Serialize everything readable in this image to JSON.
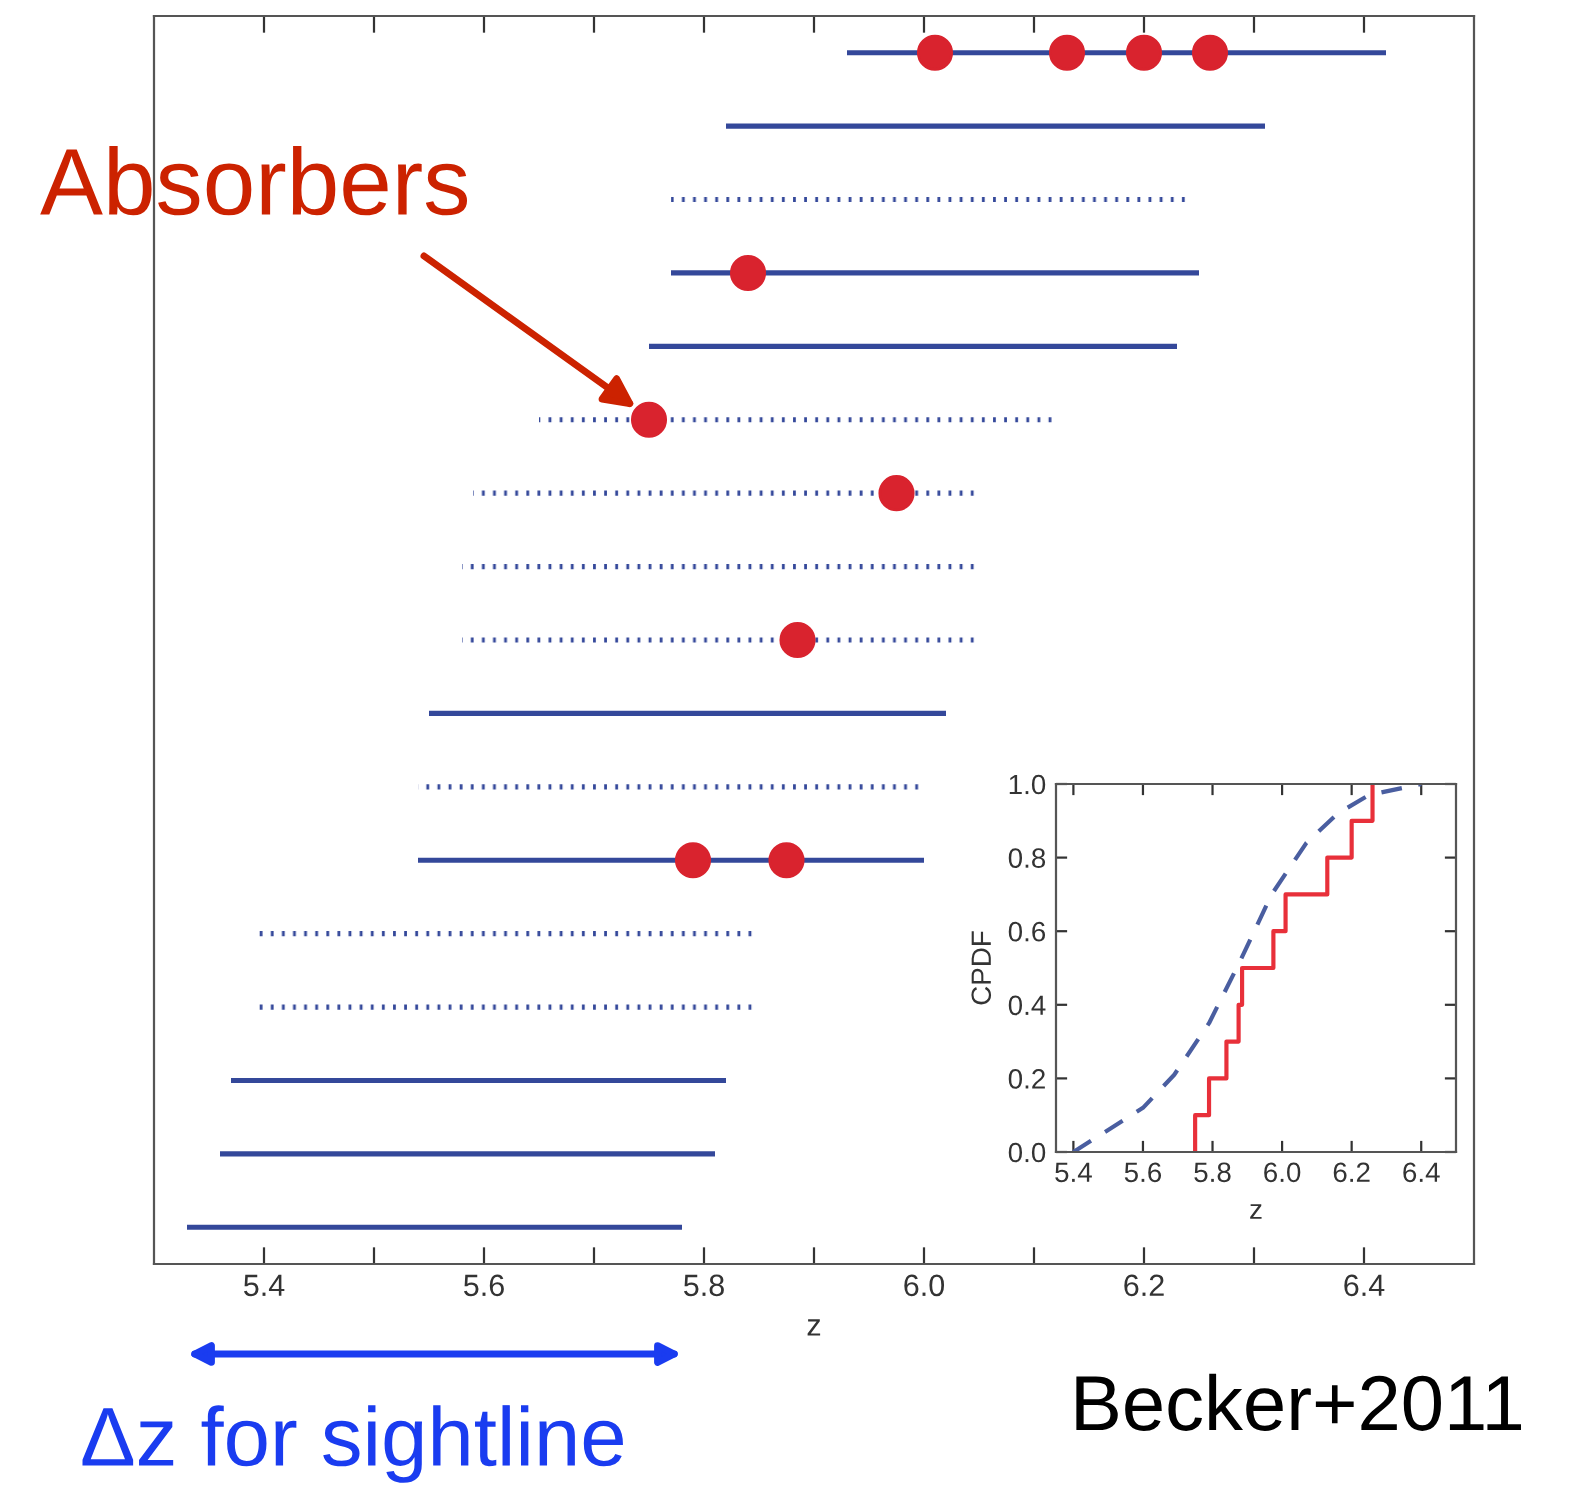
{
  "chart_data": [
    {
      "type": "bar",
      "orientation": "horizontal",
      "xlabel": "z",
      "tick_labels": "x",
      "grid": false,
      "legend": false,
      "categories": [
        null,
        null,
        null,
        null,
        null,
        null,
        null,
        null,
        null,
        null,
        null,
        null,
        null,
        null,
        null,
        null,
        null
      ],
      "xlim": [
        5.3,
        6.5
      ],
      "xticks": [
        5.4,
        {
          "value": 5.5,
          "label": null
        },
        5.6,
        {
          "value": 5.7,
          "label": null
        },
        5.8,
        {
          "value": 5.9,
          "label": null
        },
        {
          "value": 6,
          "label": "6.0"
        },
        {
          "value": 6.1,
          "label": null
        },
        6.2,
        {
          "value": 6.3,
          "label": null
        },
        6.4
      ],
      "series": [
        {
          "type": "bar",
          "line_style": "solid",
          "color": "#34489a",
          "base": [
            5.93,
            5.82,
            null,
            5.77,
            5.75,
            null,
            null,
            null,
            null,
            5.55,
            null,
            5.54,
            null,
            null,
            5.37,
            5.36,
            5.33
          ],
          "values": [
            0.49,
            0.49,
            null,
            0.48,
            0.48,
            null,
            null,
            null,
            null,
            0.47,
            null,
            0.46,
            null,
            null,
            0.45,
            0.45,
            0.45
          ]
        },
        {
          "type": "bar",
          "line_style": "dotted",
          "color": "#34489a",
          "base": [
            null,
            null,
            5.77,
            null,
            null,
            5.65,
            5.59,
            5.58,
            5.58,
            null,
            5.54,
            null,
            5.39,
            5.39,
            null,
            null,
            null
          ],
          "values": [
            null,
            null,
            0.47,
            null,
            null,
            0.47,
            0.46,
            0.47,
            0.47,
            null,
            0.46,
            null,
            0.46,
            0.46,
            null,
            null,
            null
          ]
        },
        {
          "type": "scatter",
          "marker": "circle",
          "color": "#d9232e",
          "values": [
            6.01,
            null,
            null,
            5.84,
            null,
            5.75,
            5.975,
            null,
            5.885,
            null,
            null,
            5.79,
            null,
            null,
            null,
            null,
            null
          ]
        },
        {
          "type": "scatter",
          "marker": "circle",
          "color": "#d9232e",
          "values": [
            6.13,
            null,
            null,
            null,
            null,
            null,
            null,
            null,
            null,
            null,
            null,
            5.875,
            null,
            null,
            null,
            null,
            null
          ]
        },
        {
          "type": "scatter",
          "marker": "circle",
          "color": "#d9232e",
          "values": [
            6.2,
            null,
            null,
            null,
            null,
            null,
            null,
            null,
            null,
            null,
            null,
            null,
            null,
            null,
            null,
            null,
            null
          ]
        },
        {
          "type": "scatter",
          "marker": "circle",
          "color": "#d9232e",
          "values": [
            6.26,
            null,
            null,
            null,
            null,
            null,
            null,
            null,
            null,
            null,
            null,
            null,
            null,
            null,
            null,
            null,
            null
          ]
        }
      ],
      "annotations": [
        "Absorbers",
        "Δz for sightline",
        "Becker+2011"
      ]
    },
    {
      "type": "line",
      "xlabel": "z",
      "ylabel": "CPDF",
      "grid": false,
      "legend": false,
      "xlim": [
        5.35,
        6.5
      ],
      "ylim": [
        0,
        1
      ],
      "xticks": [
        5.4,
        5.6,
        5.8,
        {
          "value": 6,
          "label": "6.0"
        },
        6.2,
        6.4
      ],
      "yticks": [
        {
          "value": 0,
          "label": "0.0"
        },
        0.2,
        0.4,
        0.6,
        0.8,
        {
          "value": 1,
          "label": "1.0"
        }
      ],
      "series": [
        {
          "type": "line",
          "line_style": "dashed",
          "color": "#4a5ea0",
          "x": [
            5.4,
            5.6,
            5.69,
            5.79,
            5.88,
            5.97,
            6.07,
            6.16,
            6.25,
            6.4
          ],
          "values": [
            0,
            0.12,
            0.21,
            0.35,
            0.52,
            0.7,
            0.84,
            0.92,
            0.97,
            1.0
          ]
        },
        {
          "type": "step",
          "line_style": "solid",
          "color": "#e8303a",
          "x": [
            5.75,
            5.75,
            5.79,
            5.84,
            5.875,
            5.885,
            5.975,
            6.01,
            6.13,
            6.2,
            6.26
          ],
          "values": [
            0,
            0.1,
            0.2,
            0.3,
            0.4,
            0.5,
            0.6,
            0.7,
            0.8,
            0.9,
            1.0
          ]
        }
      ]
    }
  ]
}
